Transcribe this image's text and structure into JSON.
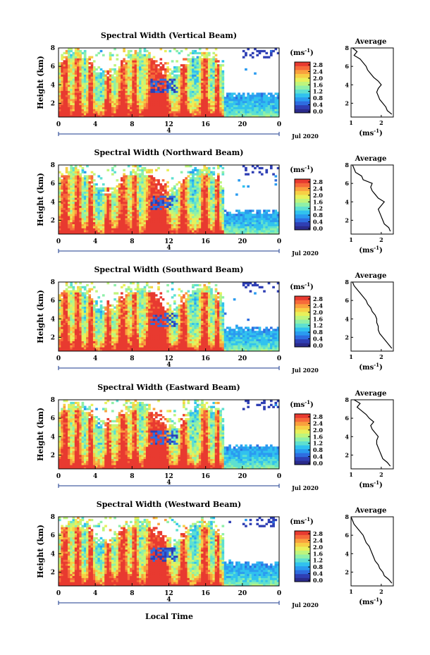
{
  "figure": {
    "x_axis_title": "Local Time",
    "date_label": "Jul 2020",
    "day_marker": "4",
    "y_axis_label": "Height (km)",
    "colorbar_unit_text": "(ms",
    "colorbar_unit_exp": "-1",
    "colorbar_unit_close": ")",
    "average_title": "Average",
    "average_unit_text": "(ms",
    "average_unit_exp": "-1",
    "average_unit_close": ")",
    "colorbar_ticks": [
      "2.8",
      "2.4",
      "2.0",
      "1.6",
      "1.2",
      "0.8",
      "0.4",
      "0.0"
    ],
    "colorbar_colors": [
      "#2b2b8c",
      "#2f3fb4",
      "#2e6de0",
      "#2a9bf0",
      "#31c2ee",
      "#5ee0d0",
      "#8ff0a8",
      "#bff57c",
      "#e8f05a",
      "#f7cf45",
      "#f9a03d",
      "#f66a3a",
      "#e83a30"
    ],
    "colormap_accent": "#e83a30"
  },
  "chart_data": [
    {
      "type": "heatmap",
      "title": "Spectral Width (Vertical Beam)",
      "xlabel": "Local Time",
      "ylabel": "Height (km)",
      "x_ticks": [
        "0",
        "4",
        "8",
        "12",
        "16",
        "20",
        "0"
      ],
      "y_ticks": [
        "2",
        "4",
        "6",
        "8"
      ],
      "xlim": [
        0,
        24
      ],
      "ylim": [
        0.5,
        8.0
      ],
      "colorbar": {
        "label": "(ms-1)",
        "range": [
          0.0,
          3.0
        ],
        "ticks": [
          "2.8",
          "2.4",
          "2.0",
          "1.6",
          "1.2",
          "0.8",
          "0.4",
          "0.0"
        ]
      },
      "average_profile": {
        "title": "Average",
        "xlabel": "(ms-1)",
        "x_ticks": [
          "1",
          "2"
        ],
        "y_ticks": [
          "2",
          "4",
          "6",
          "8"
        ],
        "xlim": [
          1.0,
          2.4
        ],
        "height": [
          0.8,
          1.2,
          1.6,
          2.0,
          2.4,
          2.8,
          3.2,
          3.6,
          4.0,
          4.4,
          4.8,
          5.2,
          5.6,
          6.0,
          6.4,
          6.8,
          7.2,
          7.6,
          8.0
        ],
        "width": [
          2.35,
          2.2,
          2.15,
          2.05,
          1.95,
          1.9,
          1.85,
          1.9,
          2.0,
          1.9,
          1.75,
          1.65,
          1.55,
          1.5,
          1.4,
          1.3,
          1.1,
          1.2,
          1.05
        ]
      }
    },
    {
      "type": "heatmap",
      "title": "Spectral Width (Northward Beam)",
      "xlabel": "Local Time",
      "ylabel": "Height (km)",
      "x_ticks": [
        "0",
        "4",
        "8",
        "12",
        "16",
        "20",
        "0"
      ],
      "y_ticks": [
        "2",
        "4",
        "6",
        "8"
      ],
      "xlim": [
        0,
        24
      ],
      "ylim": [
        0.5,
        8.0
      ],
      "colorbar": {
        "label": "(ms-1)",
        "range": [
          0.0,
          3.0
        ],
        "ticks": [
          "2.8",
          "2.4",
          "2.0",
          "1.6",
          "1.2",
          "0.8",
          "0.4",
          "0.0"
        ]
      },
      "average_profile": {
        "title": "Average",
        "xlabel": "(ms-1)",
        "x_ticks": [
          "1",
          "2"
        ],
        "y_ticks": [
          "2",
          "4",
          "6",
          "8"
        ],
        "xlim": [
          1.0,
          2.4
        ],
        "height": [
          0.8,
          1.2,
          1.6,
          2.0,
          2.4,
          2.8,
          3.2,
          3.6,
          4.0,
          4.4,
          4.8,
          5.2,
          5.6,
          6.0,
          6.4,
          6.8,
          7.2,
          7.6,
          8.0
        ],
        "width": [
          2.3,
          2.25,
          2.1,
          2.05,
          2.0,
          1.95,
          1.9,
          2.0,
          2.1,
          1.9,
          1.8,
          1.7,
          1.65,
          1.7,
          1.4,
          1.35,
          1.15,
          1.1,
          1.05
        ]
      }
    },
    {
      "type": "heatmap",
      "title": "Spectral Width (Southward Beam)",
      "xlabel": "Local Time",
      "ylabel": "Height (km)",
      "x_ticks": [
        "0",
        "4",
        "8",
        "12",
        "16",
        "20",
        "0"
      ],
      "y_ticks": [
        "2",
        "4",
        "6",
        "8"
      ],
      "xlim": [
        0,
        24
      ],
      "ylim": [
        0.5,
        8.0
      ],
      "colorbar": {
        "label": "(ms-1)",
        "range": [
          0.0,
          3.0
        ],
        "ticks": [
          "2.8",
          "2.4",
          "2.0",
          "1.6",
          "1.2",
          "0.8",
          "0.4",
          "0.0"
        ]
      },
      "average_profile": {
        "title": "Average",
        "xlabel": "(ms-1)",
        "x_ticks": [
          "1",
          "2"
        ],
        "y_ticks": [
          "2",
          "4",
          "6",
          "8"
        ],
        "xlim": [
          1.0,
          2.4
        ],
        "height": [
          0.8,
          1.2,
          1.6,
          2.0,
          2.4,
          2.8,
          3.2,
          3.6,
          4.0,
          4.4,
          4.8,
          5.2,
          5.6,
          6.0,
          6.4,
          6.8,
          7.2,
          7.6,
          8.0
        ],
        "width": [
          2.35,
          2.25,
          2.15,
          2.05,
          1.95,
          1.9,
          1.9,
          1.85,
          1.85,
          1.8,
          1.7,
          1.65,
          1.55,
          1.5,
          1.4,
          1.3,
          1.2,
          1.1,
          1.05
        ]
      }
    },
    {
      "type": "heatmap",
      "title": "Spectral Width (Eastward Beam)",
      "xlabel": "Local Time",
      "ylabel": "Height (km)",
      "x_ticks": [
        "0",
        "4",
        "8",
        "12",
        "16",
        "20",
        "0"
      ],
      "y_ticks": [
        "2",
        "4",
        "6",
        "8"
      ],
      "xlim": [
        0,
        24
      ],
      "ylim": [
        0.5,
        8.0
      ],
      "colorbar": {
        "label": "(ms-1)",
        "range": [
          0.0,
          3.0
        ],
        "ticks": [
          "2.8",
          "2.4",
          "2.0",
          "1.6",
          "1.2",
          "0.8",
          "0.4",
          "0.0"
        ]
      },
      "average_profile": {
        "title": "Average",
        "xlabel": "(ms-1)",
        "x_ticks": [
          "1",
          "2"
        ],
        "y_ticks": [
          "2",
          "4",
          "6",
          "8"
        ],
        "xlim": [
          1.0,
          2.4
        ],
        "height": [
          0.8,
          1.2,
          1.6,
          2.0,
          2.4,
          2.8,
          3.2,
          3.6,
          4.0,
          4.4,
          4.8,
          5.2,
          5.6,
          6.0,
          6.4,
          6.8,
          7.2,
          7.6,
          8.0
        ],
        "width": [
          2.3,
          2.2,
          2.05,
          2.0,
          1.95,
          1.9,
          1.85,
          1.85,
          1.9,
          1.8,
          1.7,
          1.65,
          1.75,
          1.6,
          1.5,
          1.35,
          1.2,
          1.3,
          1.1
        ]
      }
    },
    {
      "type": "heatmap",
      "title": "Spectral Width (Westward Beam)",
      "xlabel": "Local Time",
      "ylabel": "Height (km)",
      "x_ticks": [
        "0",
        "4",
        "8",
        "12",
        "16",
        "20",
        "0"
      ],
      "y_ticks": [
        "2",
        "4",
        "6",
        "8"
      ],
      "xlim": [
        0,
        24
      ],
      "ylim": [
        0.5,
        8.0
      ],
      "colorbar": {
        "label": "(ms-1)",
        "range": [
          0.0,
          3.0
        ],
        "ticks": [
          "2.8",
          "2.4",
          "2.0",
          "1.6",
          "1.2",
          "0.8",
          "0.4",
          "0.0"
        ]
      },
      "average_profile": {
        "title": "Average",
        "xlabel": "(ms-1)",
        "x_ticks": [
          "1",
          "2"
        ],
        "y_ticks": [
          "2",
          "4",
          "6",
          "8"
        ],
        "xlim": [
          1.0,
          2.4
        ],
        "height": [
          0.8,
          1.2,
          1.6,
          2.0,
          2.4,
          2.8,
          3.2,
          3.6,
          4.0,
          4.4,
          4.8,
          5.2,
          5.6,
          6.0,
          6.4,
          6.8,
          7.2,
          7.6,
          8.0
        ],
        "width": [
          2.35,
          2.25,
          2.1,
          2.05,
          1.95,
          1.9,
          1.8,
          1.75,
          1.7,
          1.65,
          1.6,
          1.5,
          1.45,
          1.4,
          1.3,
          1.2,
          1.1,
          1.05,
          1.0
        ]
      }
    }
  ]
}
